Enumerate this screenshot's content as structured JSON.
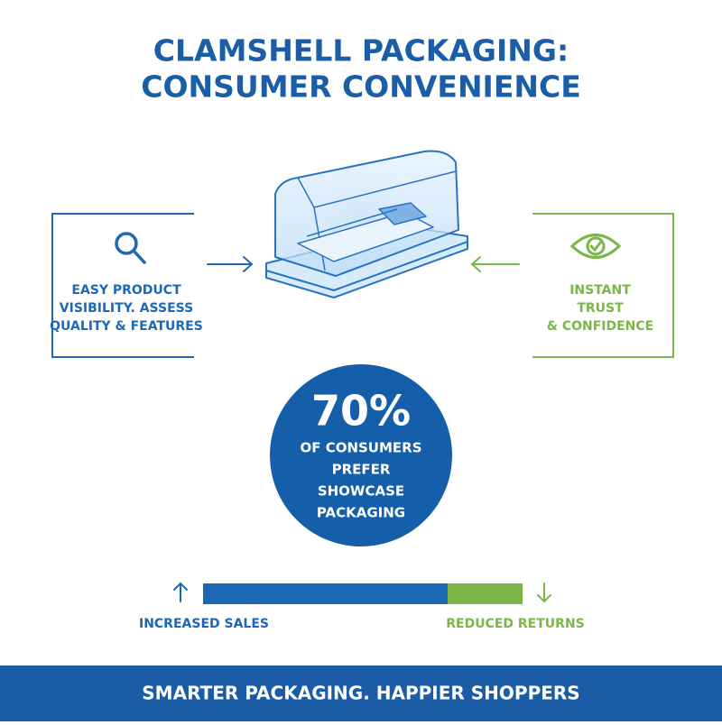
{
  "title": [
    "CLAMSHELL PACKAGING:",
    "CONSUMER CONVENIENCE"
  ],
  "left_panel": {
    "lines": [
      "EASY PRODUCT",
      "VISIBILITY. ASSESS",
      "QUALITY & FEATURES"
    ]
  },
  "right_panel": {
    "lines": [
      "INSTANT",
      "TRUST",
      "& CONFIDENCE"
    ]
  },
  "stat": {
    "value": "70%",
    "lines": [
      "OF CONSUMERS",
      "PREFER",
      "SHOWCASE",
      "PACKAGING"
    ]
  },
  "outcomes": {
    "left": "INCREASED SALES",
    "right": "REDUCED RETURNS"
  },
  "footer": "SMARTER PACKAGING. HAPPIER SHOPPERS"
}
